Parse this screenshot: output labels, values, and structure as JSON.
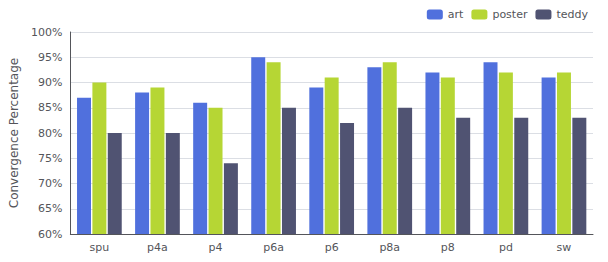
{
  "chart_data": {
    "type": "bar",
    "y_label": "Convergence Percentage",
    "categories": [
      "spu",
      "p4a",
      "p4",
      "p6a",
      "p6",
      "p8a",
      "p8",
      "pd",
      "sw"
    ],
    "series": [
      {
        "name": "art",
        "values": [
          87,
          88,
          86,
          95,
          89,
          93,
          92,
          94,
          91
        ]
      },
      {
        "name": "poster",
        "values": [
          90,
          89,
          85,
          94,
          91,
          94,
          91,
          92,
          92
        ]
      },
      {
        "name": "teddy",
        "values": [
          80,
          80,
          74,
          85,
          82,
          85,
          83,
          83,
          83
        ]
      }
    ],
    "ylim": [
      60,
      100
    ],
    "yticks": [
      {
        "value": 60,
        "label": "60%"
      },
      {
        "value": 65,
        "label": "65%"
      },
      {
        "value": 70,
        "label": "70%"
      },
      {
        "value": 75,
        "label": "75%"
      },
      {
        "value": 80,
        "label": "80%"
      },
      {
        "value": 85,
        "label": "85%"
      },
      {
        "value": 90,
        "label": "90%"
      },
      {
        "value": 95,
        "label": "95%"
      },
      {
        "value": 100,
        "label": "100%"
      }
    ],
    "grid": true,
    "legend": "upper right"
  }
}
